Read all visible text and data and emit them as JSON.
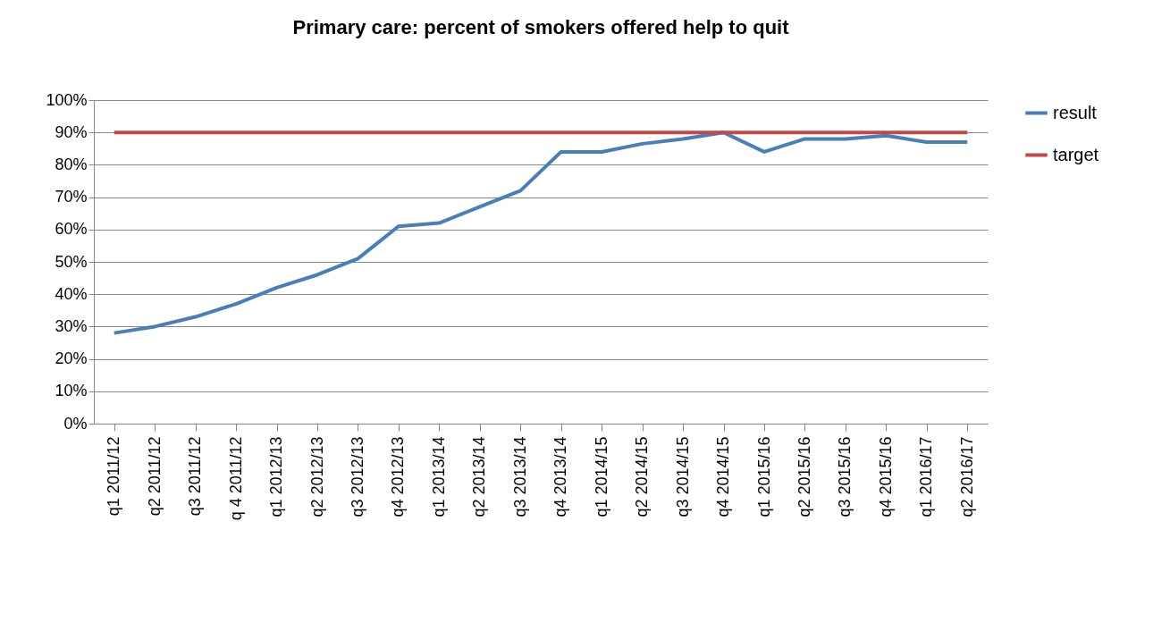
{
  "chart_data": {
    "type": "line",
    "title": "Primary care: percent of smokers offered help to quit",
    "categories": [
      "q1 2011/12",
      "q2 2011/12",
      "q3 2011/12",
      "q 4 2011/12",
      "q1 2012/13",
      "q2 2012/13",
      "q3 2012/13",
      "q4 2012/13",
      "q1 2013/14",
      "q2 2013/14",
      "q3 2013/14",
      "q4 2013/14",
      "q1 2014/15",
      "q2 2014/15",
      "q3 2014/15",
      "q4 2014/15",
      "q1 2015/16",
      "q2 2015/16",
      "q3 2015/16",
      "q4 2015/16",
      "q1 2016/17",
      "q2 2016/17"
    ],
    "series": [
      {
        "name": "result",
        "color": "#4a7ebb",
        "values": [
          28,
          30,
          33,
          37,
          42,
          46,
          51,
          61,
          62,
          67,
          72,
          84,
          84,
          86.5,
          88,
          90,
          84,
          88,
          88,
          89,
          87,
          87
        ]
      },
      {
        "name": "target",
        "color": "#be4b48",
        "values": [
          90,
          90,
          90,
          90,
          90,
          90,
          90,
          90,
          90,
          90,
          90,
          90,
          90,
          90,
          90,
          90,
          90,
          90,
          90,
          90,
          90,
          90
        ]
      }
    ],
    "ylim": [
      0,
      100
    ],
    "yticks": [
      {
        "value": 0,
        "label": "0%"
      },
      {
        "value": 10,
        "label": "10%"
      },
      {
        "value": 20,
        "label": "20%"
      },
      {
        "value": 30,
        "label": "30%"
      },
      {
        "value": 40,
        "label": "40%"
      },
      {
        "value": 50,
        "label": "50%"
      },
      {
        "value": 60,
        "label": "60%"
      },
      {
        "value": 70,
        "label": "70%"
      },
      {
        "value": 80,
        "label": "80%"
      },
      {
        "value": 90,
        "label": "90%"
      },
      {
        "value": 100,
        "label": "100%"
      }
    ],
    "grid": "y",
    "legend": "right",
    "marker": "none",
    "line_style": "solid"
  }
}
